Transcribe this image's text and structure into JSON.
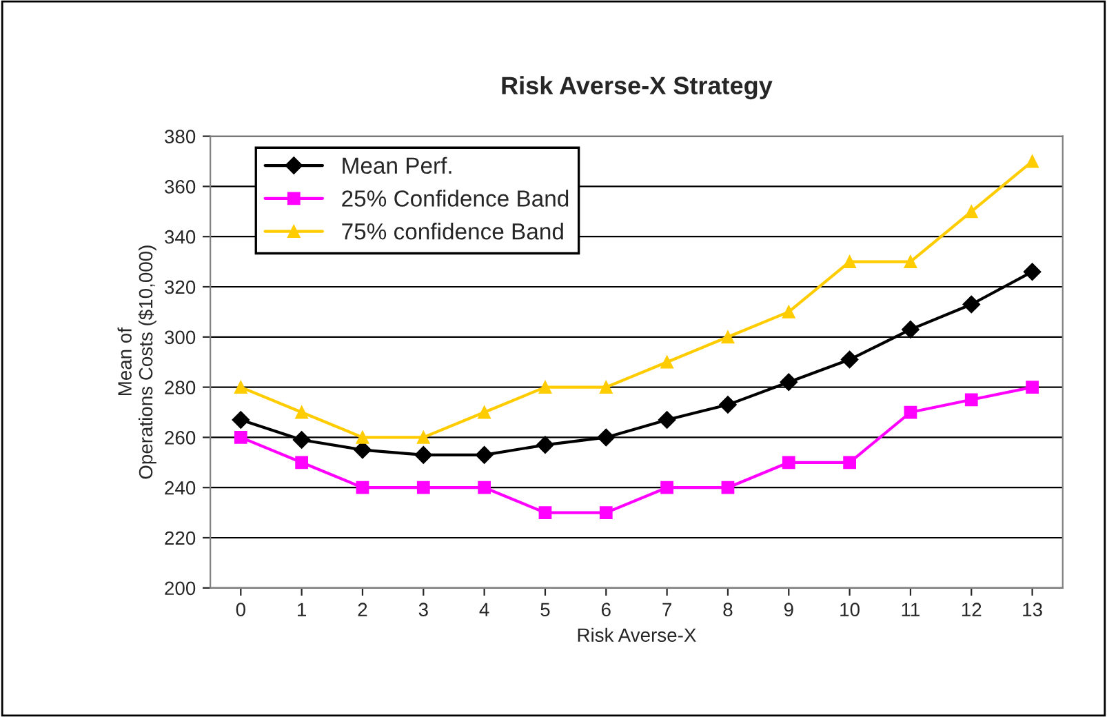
{
  "chart_data": {
    "type": "line",
    "title": "Risk Averse-X Strategy",
    "xlabel": "Risk Averse-X",
    "ylabel": "Mean of\nOperations Costs ($10,000)",
    "categories": [
      "0",
      "1",
      "2",
      "3",
      "4",
      "5",
      "6",
      "7",
      "8",
      "9",
      "10",
      "11",
      "12",
      "13"
    ],
    "series": [
      {
        "name": "Mean Perf.",
        "color": "#000000",
        "marker": "diamond",
        "values": [
          267,
          259,
          255,
          253,
          253,
          257,
          260,
          267,
          273,
          282,
          291,
          303,
          313,
          326
        ]
      },
      {
        "name": "25% Confidence Band",
        "color": "#ff00ff",
        "marker": "square",
        "values": [
          260,
          250,
          240,
          240,
          240,
          230,
          230,
          240,
          240,
          250,
          250,
          270,
          275,
          280
        ]
      },
      {
        "name": "75% confidence Band",
        "color": "#ffcc00",
        "marker": "triangle",
        "values": [
          280,
          270,
          260,
          260,
          270,
          280,
          280,
          290,
          300,
          310,
          330,
          330,
          350,
          370
        ]
      }
    ],
    "ylim": [
      200,
      380
    ],
    "yticks": [
      200,
      220,
      240,
      260,
      280,
      300,
      320,
      340,
      360,
      380
    ],
    "grid": "y",
    "legend": "top left",
    "line_style": "solid"
  }
}
